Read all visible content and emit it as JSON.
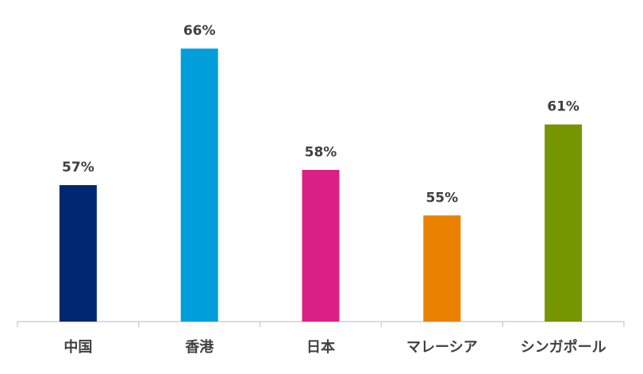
{
  "chart_data": {
    "type": "bar",
    "categories": [
      "中国",
      "香港",
      "日本",
      "マレーシア",
      "シンガポール"
    ],
    "values": [
      57,
      66,
      58,
      55,
      61
    ],
    "value_labels": [
      "57%",
      "66%",
      "58%",
      "55%",
      "61%"
    ],
    "colors": [
      "#002870",
      "#009fdb",
      "#db2085",
      "#ea8100",
      "#769600"
    ],
    "ylim": [
      48,
      68
    ]
  }
}
